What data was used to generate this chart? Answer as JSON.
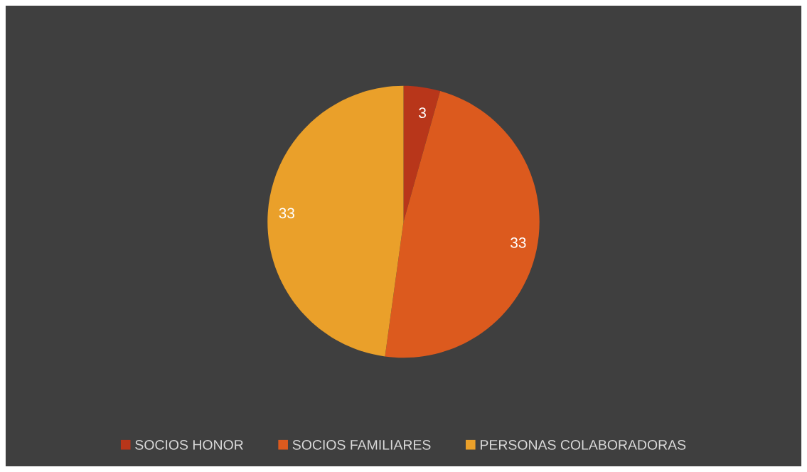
{
  "chart_data": {
    "type": "pie",
    "categories": [
      "SOCIOS HONOR",
      "SOCIOS FAMILIARES",
      "PERSONAS COLABORADORAS"
    ],
    "values": [
      3,
      33,
      33
    ],
    "colors": [
      "#b8361a",
      "#dc5a1e",
      "#eaa02a"
    ],
    "data_labels": true,
    "legend": "bottom"
  }
}
